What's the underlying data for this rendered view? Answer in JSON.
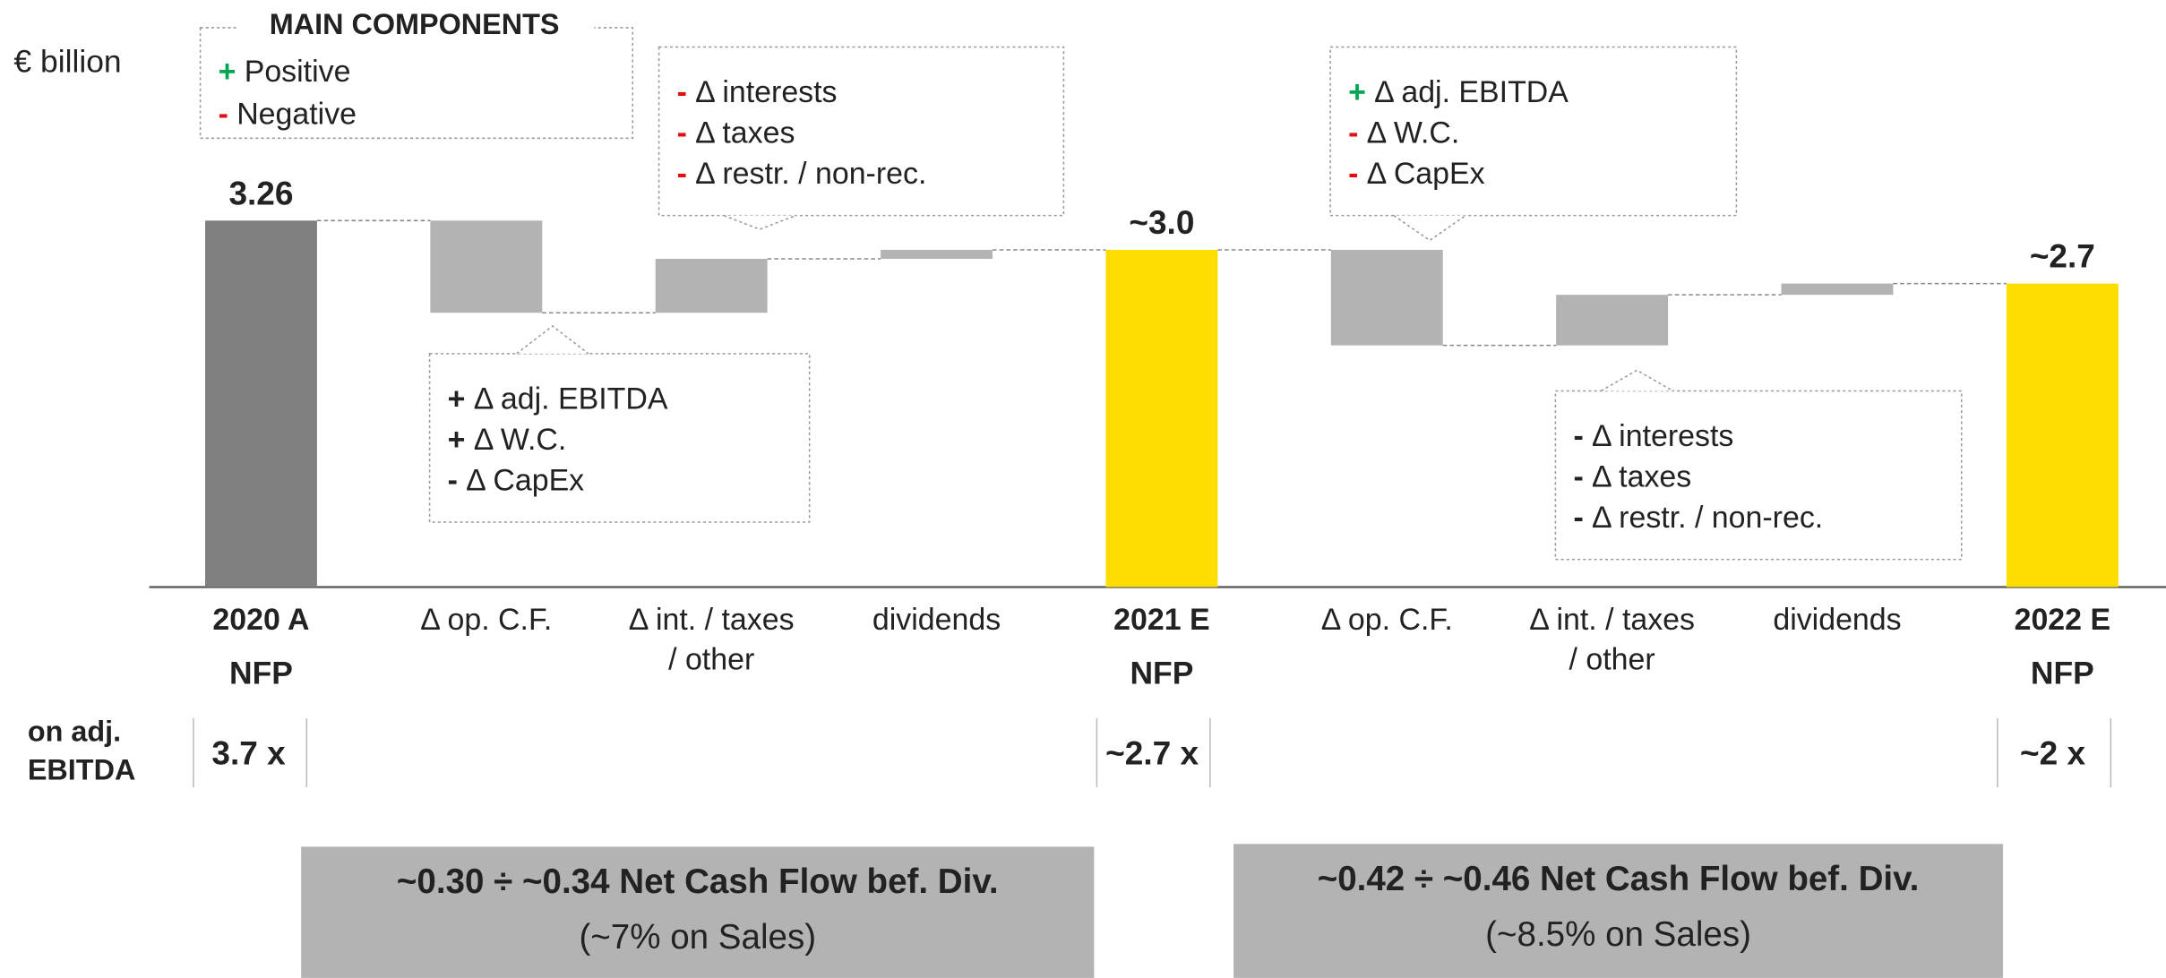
{
  "unit_label": "€ billion",
  "legend": {
    "title": "MAIN COMPONENTS",
    "items": [
      {
        "sign": "+",
        "text": "Positive",
        "color": "#00a651"
      },
      {
        "sign": "-",
        "text": "Negative",
        "color": "#e01010"
      }
    ]
  },
  "chart_data": {
    "type": "waterfall",
    "categories": [
      [
        "2020 A"
      ],
      [
        "Δ op. C.F."
      ],
      [
        "Δ int. / taxes",
        "/ other"
      ],
      [
        "dividends"
      ],
      [
        "2021 E"
      ],
      [
        "Δ op. C.F."
      ],
      [
        "Δ int. / taxes",
        "/ other"
      ],
      [
        "dividends"
      ],
      [
        "2022 E"
      ]
    ],
    "sublabels": [
      "NFP",
      null,
      null,
      null,
      "NFP",
      null,
      null,
      null,
      "NFP"
    ],
    "kinds": [
      "total",
      "delta",
      "delta",
      "delta",
      "total",
      "delta",
      "delta",
      "delta",
      "total"
    ],
    "values": [
      3.26,
      -0.82,
      0.48,
      0.08,
      3.0,
      -0.85,
      0.45,
      0.1,
      2.7
    ],
    "value_labels": [
      "3.26",
      null,
      null,
      null,
      "~3.0",
      null,
      null,
      null,
      "~2.7"
    ],
    "colors": [
      "#808080",
      "#b3b3b3",
      "#b3b3b3",
      "#b3b3b3",
      "#ffdd00",
      "#b3b3b3",
      "#b3b3b3",
      "#b3b3b3",
      "#ffdd00"
    ],
    "ylim": [
      0,
      3.6
    ]
  },
  "callouts": [
    {
      "lines": [
        {
          "sign": "-",
          "sign_color": "#e01010",
          "text": "Δ interests"
        },
        {
          "sign": "-",
          "sign_color": "#e01010",
          "text": "Δ taxes"
        },
        {
          "sign": "-",
          "sign_color": "#e01010",
          "text": "Δ restr. / non-rec."
        }
      ]
    },
    {
      "lines": [
        {
          "sign": "+",
          "sign_color": "#222222",
          "text": "Δ adj. EBITDA"
        },
        {
          "sign": "+",
          "sign_color": "#222222",
          "text": "Δ W.C."
        },
        {
          "sign": "-",
          "sign_color": "#222222",
          "text": "Δ CapEx"
        }
      ]
    },
    {
      "lines": [
        {
          "sign": "+",
          "sign_color": "#00a651",
          "text": "Δ adj. EBITDA"
        },
        {
          "sign": "-",
          "sign_color": "#e01010",
          "text": "Δ W.C."
        },
        {
          "sign": "-",
          "sign_color": "#e01010",
          "text": "Δ CapEx"
        }
      ]
    },
    {
      "lines": [
        {
          "sign": "-",
          "sign_color": "#222222",
          "text": "Δ interests"
        },
        {
          "sign": "-",
          "sign_color": "#222222",
          "text": "Δ taxes"
        },
        {
          "sign": "-",
          "sign_color": "#222222",
          "text": "Δ restr. / non-rec."
        }
      ]
    }
  ],
  "ratio_row": {
    "label": [
      "on adj.",
      "EBITDA"
    ],
    "values": [
      "3.7 x",
      null,
      null,
      null,
      "~2.7 x",
      null,
      null,
      null,
      "~2 x"
    ]
  },
  "summary_boxes": [
    {
      "title": "~0.30 ÷ ~0.34 Net Cash Flow bef. Div.",
      "subtitle": "(~7% on Sales)"
    },
    {
      "title": "~0.42 ÷ ~0.46 Net Cash Flow bef. Div.",
      "subtitle": "(~8.5% on Sales)"
    }
  ]
}
